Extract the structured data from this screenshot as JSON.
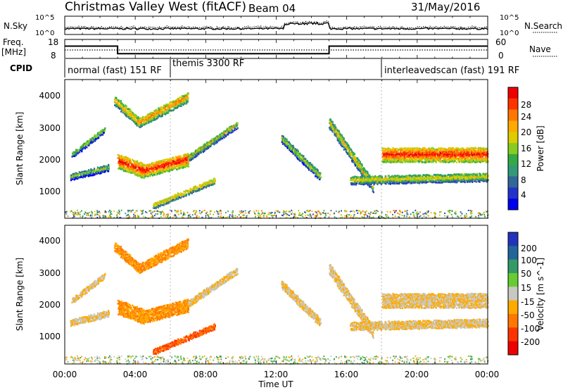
{
  "header": {
    "title": "Christmas Valley West (fitACF)",
    "beam": "Beam 04",
    "date": "31/May/2016"
  },
  "panels": {
    "nsky": {
      "label": "N.Sky",
      "right_label": "N.Search",
      "ticks": [
        "10^5",
        "10^0"
      ],
      "right_ticks": [
        "10^5",
        "10^0"
      ]
    },
    "freq": {
      "label_line1": "Freq.",
      "label_line2": "[MHz]",
      "right_label": "Nave",
      "ticks": [
        "18",
        "8"
      ],
      "right_ticks": [
        "60",
        "0"
      ]
    },
    "cpid": {
      "label": "CPID",
      "segments": [
        {
          "name": "normal (fast) 151 RF",
          "start_hour": 0.0
        },
        {
          "name": "themis 3300 RF",
          "start_hour": 6.0
        },
        {
          "name": "interleavedscan (fast) 191 RF",
          "start_hour": 18.0
        }
      ]
    }
  },
  "axes": {
    "x_label": "Time UT",
    "x_ticks": [
      "00:00",
      "04:00",
      "08:00",
      "12:00",
      "16:00",
      "20:00",
      "00:00"
    ],
    "y_label": "Slant Range [km]",
    "y_ticks": [
      "4000",
      "3000",
      "2000",
      "1000"
    ]
  },
  "power_scale": {
    "label": "Power [dB]",
    "ticks": [
      "28",
      "24",
      "20",
      "16",
      "12",
      "8",
      "4"
    ],
    "colors": [
      "#ee0000",
      "#ff3300",
      "#ff7700",
      "#ffaa00",
      "#ddcc00",
      "#88cc22",
      "#33aa44",
      "#339977",
      "#336699",
      "#2233cc",
      "#0000ee"
    ]
  },
  "velocity_scale": {
    "label": "Velocity [m s^-1]",
    "ticks": [
      "200",
      "100",
      "50",
      "15",
      "-15",
      "-50",
      "-100",
      "-200"
    ],
    "colors": [
      "#2233bb",
      "#226699",
      "#339966",
      "#66cc33",
      "#c8c8c0",
      "#ffaa00",
      "#ff7700",
      "#ff3300",
      "#ee0000"
    ]
  },
  "chart_data": {
    "type": "heatmap",
    "x_range_hours": [
      0,
      24
    ],
    "y_range_km": [
      180,
      4500
    ],
    "frequency_mhz": [
      {
        "start_hour": 0.0,
        "end_hour": 3.0,
        "value": 14.5
      },
      {
        "start_hour": 3.0,
        "end_hour": 15.0,
        "value": 10.5
      },
      {
        "start_hour": 15.0,
        "end_hour": 24.0,
        "value": 14.5
      }
    ],
    "echo_bands": [
      {
        "start_hour": 0.4,
        "end_hour": 2.3,
        "start_km": 2200,
        "end_km": 3000,
        "power_db": 12,
        "velocity": -15,
        "width_km": 180
      },
      {
        "start_hour": 0.3,
        "end_hour": 2.5,
        "start_km": 1500,
        "end_km": 1800,
        "power_db": 10,
        "velocity": -15,
        "width_km": 200
      },
      {
        "start_hour": 2.8,
        "end_hour": 4.2,
        "start_km": 3900,
        "end_km": 3200,
        "power_db": 16,
        "velocity": -50,
        "width_km": 300
      },
      {
        "start_hour": 4.2,
        "end_hour": 7.0,
        "start_km": 3200,
        "end_km": 4000,
        "power_db": 18,
        "velocity": -50,
        "width_km": 300
      },
      {
        "start_hour": 3.0,
        "end_hour": 4.5,
        "start_km": 2000,
        "end_km": 1700,
        "power_db": 22,
        "velocity": -50,
        "width_km": 450
      },
      {
        "start_hour": 4.5,
        "end_hour": 7.0,
        "start_km": 1700,
        "end_km": 2050,
        "power_db": 22,
        "velocity": -50,
        "width_km": 400
      },
      {
        "start_hour": 7.0,
        "end_hour": 9.8,
        "start_km": 2100,
        "end_km": 3150,
        "power_db": 14,
        "velocity": -15,
        "width_km": 200
      },
      {
        "start_hour": 5.0,
        "end_hour": 8.5,
        "start_km": 600,
        "end_km": 1400,
        "power_db": 16,
        "velocity": -100,
        "width_km": 180
      },
      {
        "start_hour": 12.3,
        "end_hour": 14.5,
        "start_km": 2700,
        "end_km": 1500,
        "power_db": 12,
        "velocity": -15,
        "width_km": 250
      },
      {
        "start_hour": 15.0,
        "end_hour": 17.5,
        "start_km": 3200,
        "end_km": 1200,
        "power_db": 14,
        "velocity": -15,
        "width_km": 350
      },
      {
        "start_hour": 18.0,
        "end_hour": 24.0,
        "start_km": 2200,
        "end_km": 2200,
        "power_db": 22,
        "velocity": -15,
        "width_km": 450
      },
      {
        "start_hour": 16.2,
        "end_hour": 24.0,
        "start_km": 1400,
        "end_km": 1500,
        "power_db": 14,
        "velocity": -15,
        "width_km": 250
      }
    ]
  }
}
